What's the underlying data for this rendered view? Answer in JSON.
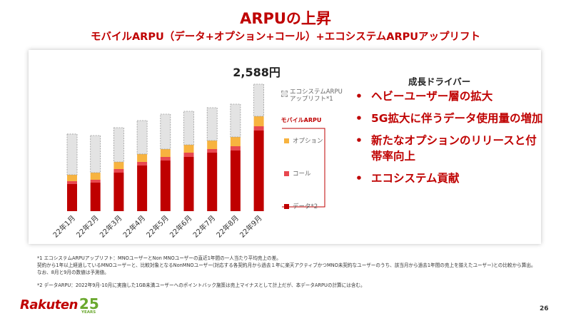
{
  "title": "ARPUの上昇",
  "subtitle": "モバイルARPU（データ+オプション+コール）+エコシステムARPUアップリフト",
  "chart_data": {
    "type": "stacked_bar",
    "categories": [
      "22年1月",
      "22年2月",
      "22年3月",
      "22年4月",
      "22年5月",
      "22年6月",
      "22年7月",
      "22年8月",
      "22年9月"
    ],
    "series": [
      {
        "name": "データ*2",
        "color": "#bf0000",
        "values": [
          553,
          582,
          785,
          931,
          1032,
          1105,
          1192,
          1236,
          1643
        ]
      },
      {
        "name": "コール",
        "color": "#e8474f",
        "values": [
          58,
          58,
          73,
          73,
          73,
          87,
          73,
          87,
          87
        ]
      },
      {
        "name": "オプション",
        "color": "#f7b33f",
        "values": [
          131,
          145,
          145,
          160,
          160,
          160,
          174,
          189,
          204
        ]
      },
      {
        "name": "エコシステムARPUアップリフト*1",
        "color": "#e3e3e3",
        "values": [
          829,
          756,
          698,
          683,
          712,
          683,
          669,
          669,
          654
        ]
      }
    ],
    "group_label": "モバイルARPU",
    "total_label": "2,588円"
  },
  "drivers": {
    "title": "成長ドライバー",
    "items": [
      "ヘビーユーザー層の拡大",
      "5G拡大に伴うデータ使用量の増加",
      "新たなオプションのリリースと付帯率向上",
      "エコシステム貢献"
    ]
  },
  "footnotes": [
    "*1 エコシステムARPUアップリフト：MNOユーザーとNon MNOユーザーの直近1年間の一人当たり平均売上の差。",
    "契約から1年以上経過しているMNOユーザーと、比較対象となるNonMNOユーザー(対応する各契約月から過去１年に楽天アクティブかつMNO未契約なユーザーのうち、該当月から過去1年間の売上を揃えたユーザー)との比較から算出。",
    "なお、8月と9月の数値は予測値。",
    "*2 データARPU：2022年9月-10月に実施した1GB未満ユーザーへのポイントバック施策は売上マイナスとして計上だが、本データARPUの計算には含む。"
  ],
  "logo": {
    "word": "Rakuten",
    "number": "25",
    "years": "YEARS"
  },
  "page_number": "26"
}
